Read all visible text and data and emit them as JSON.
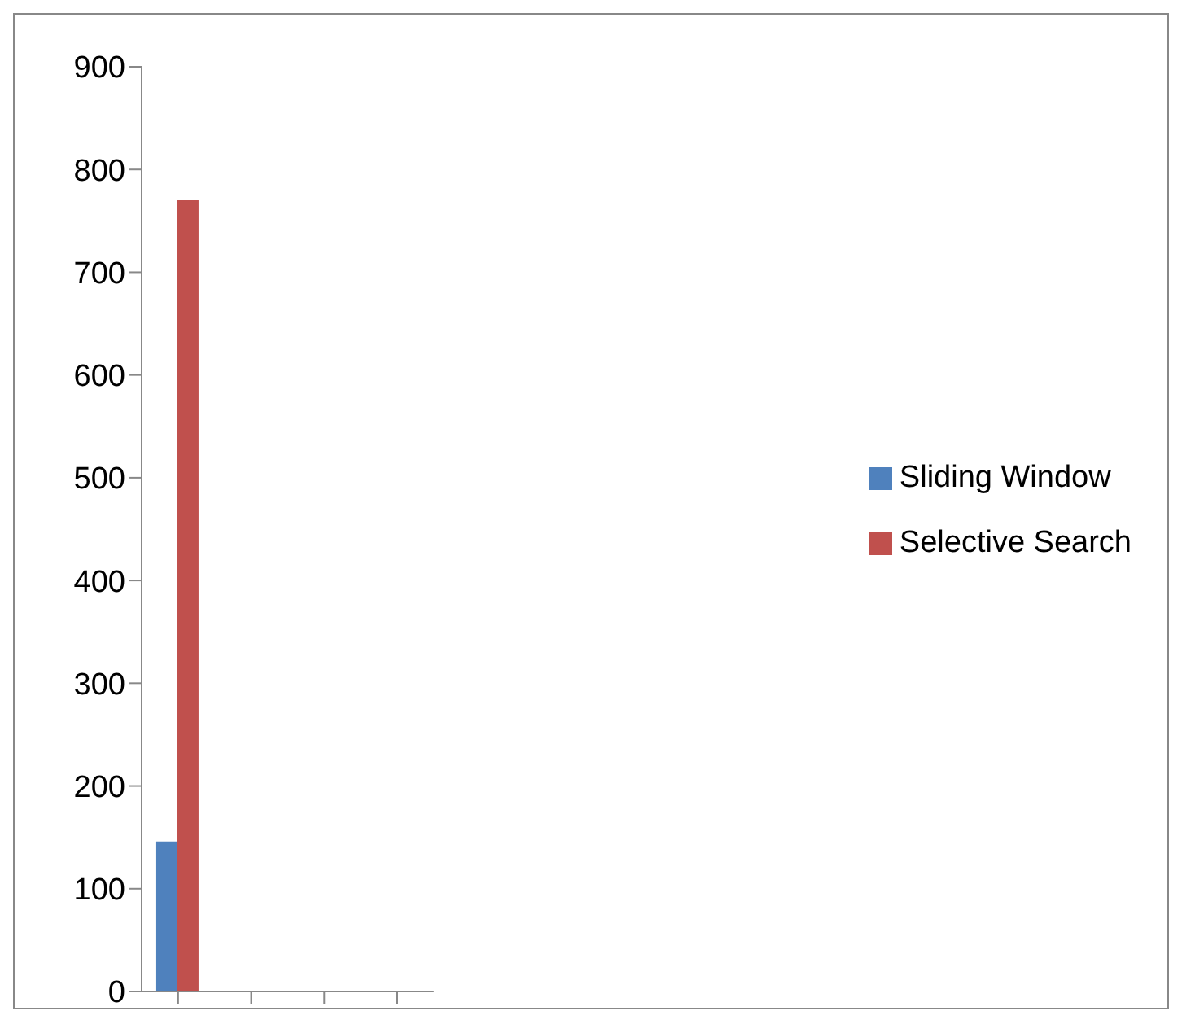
{
  "chart_data": {
    "type": "bar",
    "categories": [
      null,
      null,
      null,
      null
    ],
    "series": [
      {
        "name": "Sliding Window",
        "color": "#4f81bd",
        "values": [
          146,
          null,
          null,
          null
        ]
      },
      {
        "name": "Selective Search",
        "color": "#c0504d",
        "values": [
          770,
          null,
          null,
          null
        ]
      }
    ],
    "ylim": [
      0,
      900
    ],
    "yticks": [
      0,
      100,
      200,
      300,
      400,
      500,
      600,
      700,
      800,
      900
    ],
    "grid": false,
    "legend": "right"
  }
}
